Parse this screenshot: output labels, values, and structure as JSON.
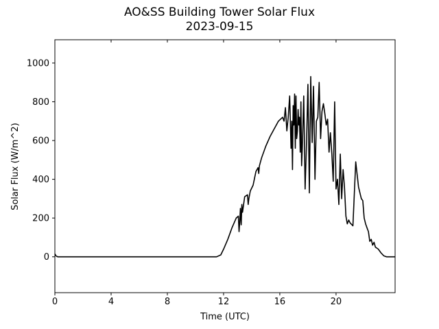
{
  "chart_data": {
    "type": "line",
    "title": "AO&SS Building Tower Solar Flux",
    "subtitle": "2023-09-15",
    "xlabel": "Time (UTC)",
    "ylabel": "Solar Flux (W/m^2)",
    "xlim": [
      0,
      24.2
    ],
    "ylim": [
      -185,
      1120
    ],
    "xticks": [
      0,
      4,
      8,
      12,
      16,
      20
    ],
    "yticks": [
      0,
      200,
      400,
      600,
      800,
      1000
    ],
    "grid": false,
    "line_color": "#000000",
    "series": [
      {
        "x": [
          0.0,
          0.08,
          0.2,
          0.5,
          2,
          4,
          6,
          8,
          10,
          11.5,
          11.8,
          12.0,
          12.3,
          12.6,
          12.9,
          13.05,
          13.1,
          13.15,
          13.2,
          13.25,
          13.3,
          13.35,
          13.5,
          13.7,
          13.75,
          13.8,
          13.9,
          14.1,
          14.3,
          14.45,
          14.5,
          14.55,
          14.7,
          15.0,
          15.3,
          15.6,
          15.9,
          16.2,
          16.3,
          16.4,
          16.5,
          16.6,
          16.7,
          16.8,
          16.85,
          16.9,
          16.95,
          17.0,
          17.05,
          17.1,
          17.15,
          17.2,
          17.25,
          17.3,
          17.35,
          17.4,
          17.45,
          17.5,
          17.55,
          17.6,
          17.7,
          17.8,
          17.9,
          18.0,
          18.1,
          18.2,
          18.3,
          18.4,
          18.5,
          18.6,
          18.7,
          18.8,
          18.9,
          19.0,
          19.1,
          19.2,
          19.3,
          19.4,
          19.5,
          19.6,
          19.7,
          19.8,
          19.9,
          20.0,
          20.1,
          20.2,
          20.3,
          20.4,
          20.5,
          20.6,
          20.7,
          20.8,
          20.9,
          21.0,
          21.2,
          21.4,
          21.6,
          21.8,
          21.9,
          22.0,
          22.1,
          22.2,
          22.3,
          22.4,
          22.5,
          22.6,
          22.7,
          22.8,
          22.9,
          23.0,
          23.2,
          23.4,
          23.6,
          23.8,
          24.0,
          24.2
        ],
        "y": [
          15,
          5,
          0,
          0,
          0,
          0,
          0,
          0,
          0,
          0,
          10,
          40,
          90,
          150,
          200,
          210,
          130,
          180,
          250,
          165,
          270,
          230,
          310,
          320,
          270,
          300,
          340,
          370,
          440,
          460,
          430,
          470,
          510,
          570,
          620,
          660,
          700,
          720,
          700,
          770,
          650,
          720,
          830,
          560,
          700,
          450,
          780,
          680,
          840,
          560,
          830,
          610,
          650,
          760,
          680,
          720,
          540,
          800,
          470,
          560,
          830,
          350,
          590,
          890,
          330,
          930,
          590,
          880,
          400,
          700,
          720,
          900,
          610,
          750,
          790,
          740,
          680,
          710,
          540,
          640,
          530,
          390,
          800,
          350,
          400,
          270,
          530,
          300,
          450,
          360,
          210,
          170,
          190,
          175,
          160,
          490,
          360,
          300,
          290,
          200,
          170,
          150,
          130,
          80,
          90,
          60,
          75,
          50,
          45,
          40,
          20,
          5,
          0,
          0,
          0,
          0
        ]
      }
    ]
  }
}
